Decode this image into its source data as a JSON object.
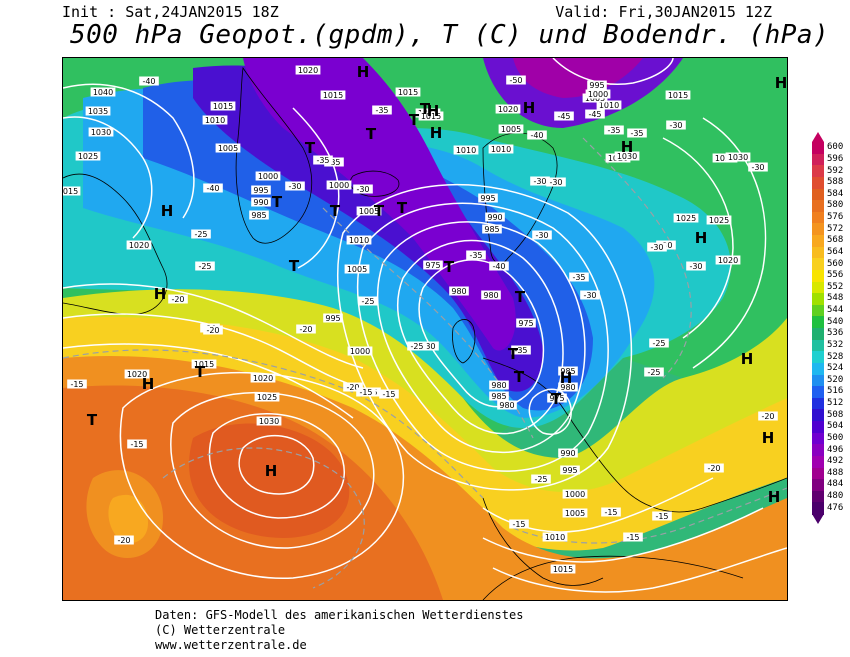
{
  "header": {
    "init_text": "Init : Sat,24JAN2015 18Z",
    "valid_text": "Valid: Fri,30JAN2015 12Z",
    "title": "500 hPa Geopot.(gpdm), T (C) und Bodendr. (hPa)"
  },
  "legend": {
    "levels": [
      600,
      596,
      592,
      588,
      584,
      580,
      576,
      572,
      568,
      564,
      560,
      556,
      552,
      548,
      544,
      540,
      536,
      532,
      528,
      524,
      520,
      516,
      512,
      508,
      504,
      500,
      496,
      492,
      488,
      484,
      480,
      476
    ],
    "colors": [
      "#c40060",
      "#d0205a",
      "#dc3a48",
      "#e04e30",
      "#e06020",
      "#e87020",
      "#f08020",
      "#f49420",
      "#f8a820",
      "#f8bc20",
      "#f8d020",
      "#f8e400",
      "#d8e800",
      "#a0e000",
      "#60d020",
      "#20c040",
      "#20b070",
      "#20c0a0",
      "#20d0d0",
      "#20b8f0",
      "#2090f0",
      "#2060f0",
      "#2030e0",
      "#3010d0",
      "#5000d0",
      "#7000d0",
      "#8a00c0",
      "#a000b0",
      "#a00090",
      "#800080",
      "#600070",
      "#4b006b"
    ]
  },
  "map": {
    "isobar_labels": [
      {
        "t": "1040"
      },
      {
        "t": "1035"
      },
      {
        "t": "1030"
      },
      {
        "t": "1025"
      },
      {
        "t": "1015"
      },
      {
        "t": "1020"
      },
      {
        "t": "1015"
      },
      {
        "t": "1010"
      },
      {
        "t": "1005"
      },
      {
        "t": "1000"
      },
      {
        "t": "995"
      },
      {
        "t": "990"
      },
      {
        "t": "985"
      },
      {
        "t": "1020"
      },
      {
        "t": "1015"
      },
      {
        "t": "1015"
      },
      {
        "t": "1020"
      },
      {
        "t": "1015"
      },
      {
        "t": "1010"
      },
      {
        "t": "1005"
      },
      {
        "t": "1000"
      },
      {
        "t": "995"
      },
      {
        "t": "990"
      },
      {
        "t": "985"
      },
      {
        "t": "975"
      },
      {
        "t": "980"
      },
      {
        "t": "980"
      },
      {
        "t": "975"
      },
      {
        "t": "980"
      },
      {
        "t": "985"
      },
      {
        "t": "980"
      },
      {
        "t": "975"
      },
      {
        "t": "985"
      },
      {
        "t": "980"
      },
      {
        "t": "990"
      },
      {
        "t": "995"
      },
      {
        "t": "1000"
      },
      {
        "t": "1005"
      },
      {
        "t": "1010"
      },
      {
        "t": "1015"
      },
      {
        "t": "1030"
      },
      {
        "t": "1025"
      },
      {
        "t": "1020"
      },
      {
        "t": "1015"
      },
      {
        "t": "1020"
      },
      {
        "t": "1025"
      },
      {
        "t": "1030"
      },
      {
        "t": "1030"
      },
      {
        "t": "1010"
      },
      {
        "t": "1005"
      },
      {
        "t": "1000"
      },
      {
        "t": "995"
      },
      {
        "t": "1010"
      },
      {
        "t": "1005"
      },
      {
        "t": "1020"
      },
      {
        "t": "1030"
      },
      {
        "t": "1025"
      },
      {
        "t": "1020"
      },
      {
        "t": "1015"
      },
      {
        "t": "1020"
      },
      {
        "t": "1010"
      },
      {
        "t": "1005"
      },
      {
        "t": "1000"
      },
      {
        "t": "995"
      }
    ],
    "temp_labels": [
      {
        "t": "-40"
      },
      {
        "t": "-40"
      },
      {
        "t": "-35"
      },
      {
        "t": "-35"
      },
      {
        "t": "-30"
      },
      {
        "t": "-30"
      },
      {
        "t": "-25"
      },
      {
        "t": "-25"
      },
      {
        "t": "-20"
      },
      {
        "t": "-20"
      },
      {
        "t": "-20"
      },
      {
        "t": "-15"
      },
      {
        "t": "-15"
      },
      {
        "t": "-15"
      },
      {
        "t": "-20"
      },
      {
        "t": "-45"
      },
      {
        "t": "-50"
      },
      {
        "t": "-45"
      },
      {
        "t": "-40"
      },
      {
        "t": "-35"
      },
      {
        "t": "-35"
      },
      {
        "t": "-30"
      },
      {
        "t": "-30"
      },
      {
        "t": "-30"
      },
      {
        "t": "-35"
      },
      {
        "t": "-40"
      },
      {
        "t": "-35"
      },
      {
        "t": "-30"
      },
      {
        "t": "-25"
      },
      {
        "t": "-25"
      },
      {
        "t": "-35"
      },
      {
        "t": "-30"
      },
      {
        "t": "-25"
      },
      {
        "t": "-25"
      },
      {
        "t": "-20"
      },
      {
        "t": "-20"
      },
      {
        "t": "-15"
      },
      {
        "t": "-15"
      },
      {
        "t": "-15"
      },
      {
        "t": "-15"
      },
      {
        "t": "-30"
      },
      {
        "t": "-30"
      },
      {
        "t": "-30"
      },
      {
        "t": "-30"
      },
      {
        "t": "-20"
      },
      {
        "t": "-35"
      },
      {
        "t": "-30"
      },
      {
        "t": "-25"
      },
      {
        "t": "-20"
      },
      {
        "t": "-15"
      },
      {
        "t": "-15"
      }
    ],
    "pressure_centers": [
      {
        "t": "H"
      },
      {
        "t": "H"
      },
      {
        "t": "H"
      },
      {
        "t": "H"
      },
      {
        "t": "H"
      },
      {
        "t": "H"
      },
      {
        "t": "H"
      },
      {
        "t": "H"
      },
      {
        "t": "H"
      },
      {
        "t": "H"
      },
      {
        "t": "H"
      },
      {
        "t": "H"
      },
      {
        "t": "H"
      },
      {
        "t": "H"
      },
      {
        "t": "H"
      },
      {
        "t": "T"
      },
      {
        "t": "T"
      },
      {
        "t": "T"
      },
      {
        "t": "T"
      },
      {
        "t": "T"
      },
      {
        "t": "T"
      },
      {
        "t": "T"
      },
      {
        "t": "T"
      },
      {
        "t": "T"
      },
      {
        "t": "T"
      },
      {
        "t": "T"
      },
      {
        "t": "T"
      },
      {
        "t": "T"
      },
      {
        "t": "T"
      },
      {
        "t": "T"
      },
      {
        "t": "T"
      }
    ]
  },
  "footer": {
    "line1": "Daten: GFS-Modell des amerikanischen Wetterdienstes",
    "line2": "(C) Wetterzentrale",
    "line3": "www.wetterzentrale.de"
  }
}
